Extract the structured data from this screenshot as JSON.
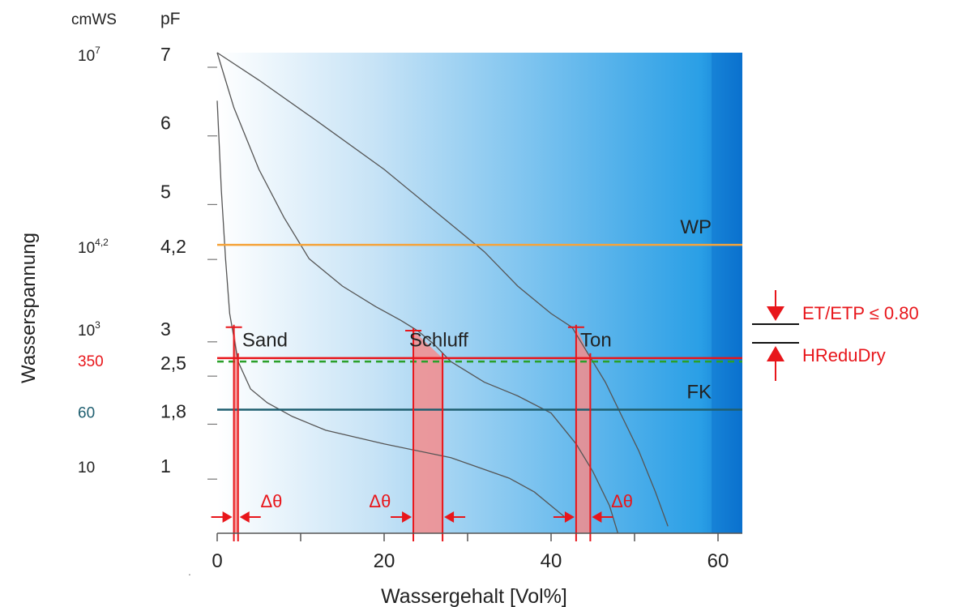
{
  "chart_data": {
    "type": "line",
    "title": "",
    "xlabel": "Wassergehalt [Vol%]",
    "ylabel": "Wasserspannung",
    "xlim": [
      0,
      63
    ],
    "ylim": [
      0,
      7
    ],
    "x_ticks": [
      "0",
      "20",
      "40",
      "60"
    ],
    "x_tick_values": [
      0,
      20,
      40,
      60
    ],
    "x_minor_ticks": [
      10,
      30,
      50
    ],
    "pf_header": "pF",
    "cmws_header": "cmWS",
    "pf_ticks": [
      {
        "label": "7",
        "value": 7
      },
      {
        "label": "6",
        "value": 6
      },
      {
        "label": "5",
        "value": 5
      },
      {
        "label": "4,2",
        "value": 4.2
      },
      {
        "label": "3",
        "value": 3
      },
      {
        "label": "2,5",
        "value": 2.5
      },
      {
        "label": "1,8",
        "value": 1.8
      },
      {
        "label": "1",
        "value": 1
      }
    ],
    "cmws_ticks": [
      {
        "base": "10",
        "exp": "7",
        "value": 7,
        "color": "#222222"
      },
      {
        "base": "10",
        "exp": "4,2",
        "value": 4.2,
        "color": "#222222"
      },
      {
        "base": "10",
        "exp": "3",
        "value": 3,
        "color": "#222222"
      },
      {
        "base": "350",
        "exp": "",
        "value": 2.55,
        "color": "#e8161b"
      },
      {
        "base": "60",
        "exp": "",
        "value": 1.8,
        "color": "#1f5f70"
      },
      {
        "base": "10",
        "exp": "",
        "value": 1,
        "color": "#222222"
      }
    ],
    "series": [
      {
        "name": "Sand",
        "x": [
          0,
          0.5,
          1,
          1.5,
          2.5,
          4,
          6,
          9,
          13,
          20,
          28,
          35,
          38,
          42
        ],
        "y": [
          6.3,
          5.0,
          4.0,
          3.2,
          2.5,
          2.1,
          1.9,
          1.7,
          1.5,
          1.3,
          1.1,
          0.8,
          0.6,
          0.2
        ]
      },
      {
        "name": "Schluff",
        "x": [
          0,
          2,
          5,
          8,
          11,
          15,
          19,
          22,
          24,
          26,
          28,
          32,
          36,
          40,
          43,
          45,
          47,
          48
        ],
        "y": [
          7.0,
          6.2,
          5.3,
          4.6,
          4.0,
          3.6,
          3.3,
          3.1,
          2.95,
          2.75,
          2.5,
          2.2,
          2.0,
          1.75,
          1.3,
          0.9,
          0.4,
          0.0
        ]
      },
      {
        "name": "Ton",
        "x": [
          0,
          5,
          12,
          20,
          27,
          32,
          36,
          40,
          42.5,
          44.5,
          46.5,
          48.5,
          50.5,
          52.5,
          54
        ],
        "y": [
          7.0,
          6.6,
          6.0,
          5.3,
          4.6,
          4.1,
          3.6,
          3.2,
          3.0,
          2.6,
          2.2,
          1.7,
          1.2,
          0.6,
          0.1
        ]
      }
    ],
    "curve_labels": [
      {
        "text": "Sand",
        "x": 3.0,
        "y": 2.72
      },
      {
        "text": "Schluff",
        "x": 23.0,
        "y": 2.72
      },
      {
        "text": "Ton",
        "x": 43.5,
        "y": 2.72
      }
    ],
    "reference_lines": [
      {
        "name": "WP",
        "label": "WP",
        "y": 4.2,
        "color": "#f5a33a"
      },
      {
        "name": "ET-ETP",
        "label": "",
        "y": 2.55,
        "color": "#e8161b"
      },
      {
        "name": "HReduDry",
        "label": "",
        "y": 2.5,
        "color": "#2aa02a",
        "dashed": true
      },
      {
        "name": "FK",
        "label": "FK",
        "y": 1.8,
        "color": "#1f5f70"
      }
    ],
    "delta_areas": [
      {
        "name": "Sand",
        "x_left": 2.0,
        "x_right": 2.5,
        "top_y": 3.0,
        "bottom_y": 2.55
      },
      {
        "name": "Schluff",
        "x_left": 23.5,
        "x_right": 27.0,
        "top_y": 2.95,
        "bottom_y": 2.55
      },
      {
        "name": "Ton",
        "x_left": 43.0,
        "x_right": 44.7,
        "top_y": 3.0,
        "bottom_y": 2.55
      }
    ],
    "delta_labels": [
      {
        "text": "Δθ",
        "x": 6.5
      },
      {
        "text": "Δθ",
        "x": 19.5
      },
      {
        "text": "Δθ",
        "x": 48.5
      }
    ],
    "legend": [
      {
        "text": "ET/ETP ≤ 0.80",
        "color": "#e8161b"
      },
      {
        "text": "HReduDry",
        "color": "#e8161b"
      }
    ],
    "gradient": [
      "#ffffff",
      "#c7e3f6",
      "#7cc3ef",
      "#2a9fe6",
      "#0a73cf"
    ],
    "curve_color": "#555555",
    "red": "#e8161b",
    "fill_red": "#f48c8c"
  },
  "footnote": "."
}
